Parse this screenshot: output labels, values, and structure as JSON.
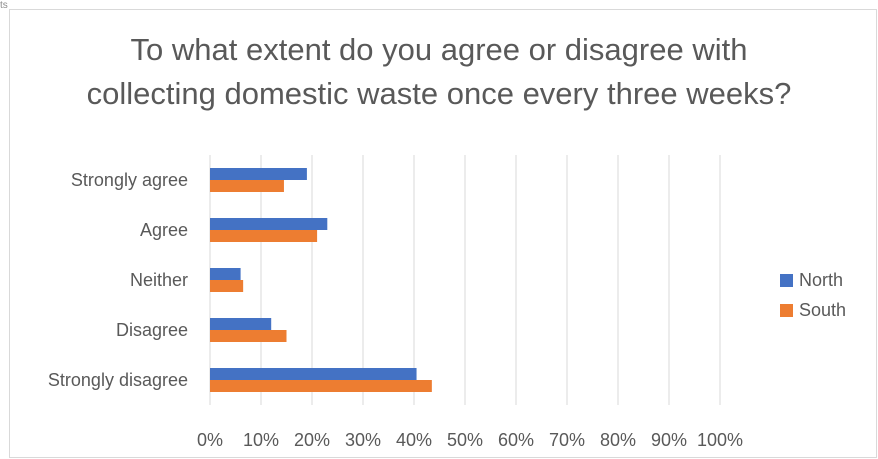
{
  "corner_mark": "ts",
  "chart_data": {
    "type": "bar",
    "orientation": "horizontal",
    "title_lines": [
      "To what extent do you agree or disagree with",
      "collecting domestic waste once every three weeks?"
    ],
    "categories": [
      "Strongly agree",
      "Agree",
      "Neither",
      "Disagree",
      "Strongly disagree"
    ],
    "series": [
      {
        "name": "North",
        "color": "#4472C4",
        "values": [
          19,
          23,
          6,
          12,
          40.5
        ]
      },
      {
        "name": "South",
        "color": "#ED7D31",
        "values": [
          14.5,
          21,
          6.5,
          15,
          43.5
        ]
      }
    ],
    "xlim": [
      0,
      100
    ],
    "xticks": [
      "0%",
      "10%",
      "20%",
      "30%",
      "40%",
      "50%",
      "60%",
      "70%",
      "80%",
      "90%",
      "100%"
    ],
    "grid": true,
    "legend_position": "right"
  }
}
